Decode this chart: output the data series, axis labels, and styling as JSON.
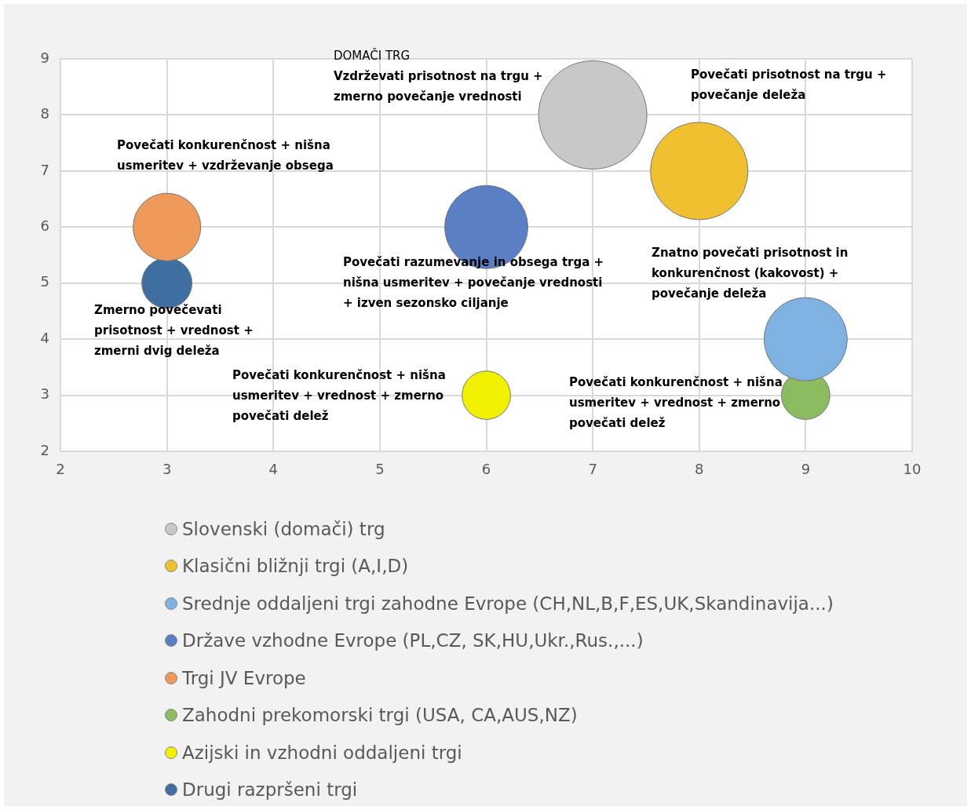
{
  "chart_data": {
    "type": "bubble",
    "xlim": [
      2,
      10
    ],
    "xticks": [
      2,
      3,
      4,
      5,
      6,
      7,
      8,
      9,
      10
    ],
    "ylim": [
      2,
      9
    ],
    "yticks": [
      2,
      3,
      4,
      5,
      6,
      7,
      8,
      9
    ],
    "grid": true,
    "legend": "bottom",
    "series": [
      {
        "name": "Slovenski (domači) trg",
        "color": "#c8c8c8",
        "x": [
          7
        ],
        "values": [
          8
        ],
        "sizes": [
          1
        ]
      },
      {
        "name": "Klasični bližnji trgi (A,I,D)",
        "color": "#f0c030",
        "x": [
          8
        ],
        "values": [
          7
        ],
        "sizes": [
          0.81
        ]
      },
      {
        "name": "Srednje oddaljeni trgi zahodne Evrope (CH,NL,B,F,ES,UK,Skandinavija...)",
        "color": "#7fb2e0",
        "x": [
          9
        ],
        "values": [
          4
        ],
        "sizes": [
          0.59
        ]
      },
      {
        "name": "Države vzhodne Evrope (PL,CZ, SK,HU,Ukr.,Rus.,...)",
        "color": "#5b7fc4",
        "x": [
          6
        ],
        "values": [
          6
        ],
        "sizes": [
          0.59
        ]
      },
      {
        "name": "Trgi JV Evrope",
        "color": "#ee9a5a",
        "x": [
          3
        ],
        "values": [
          6
        ],
        "sizes": [
          0.39
        ]
      },
      {
        "name": "Zahodni prekomorski trgi (USA, CA,AUS,NZ)",
        "color": "#8cbc60",
        "x": [
          9
        ],
        "values": [
          3
        ],
        "sizes": [
          0.2
        ]
      },
      {
        "name": "Azijski in vzhodni oddaljeni trgi",
        "color": "#f0f000",
        "x": [
          6
        ],
        "values": [
          3
        ],
        "sizes": [
          0.2
        ]
      },
      {
        "name": "Drugi razpršeni trgi",
        "color": "#3e6fa0",
        "x": [
          3
        ],
        "values": [
          5
        ],
        "sizes": [
          0.215
        ]
      }
    ],
    "annotations": [
      "DOMAČI TRG",
      "Vzdrževati prisotnost na trgu +\nzmerno povečanje vrednosti",
      "Povečati prisotnost na trgu +\npovečanje deleža",
      "Povečati konkurenčnost + nišna\nusmeritev + vzdrževanje obsega",
      "Povečati razumevanje in obsega trga +\nnišna usmeritev + povečanje vrednosti\n+ izven sezonsko ciljanje",
      "Znatno povečati prisotnost in\nkonkurenčnost (kakovost) +\npovečanje deleža",
      "Zmerno povečevati\nprisotnost + vrednost +\nzmerni dvig deleža",
      "Povečati konkurenčnost + nišna\nusmeritev + vrednost + zmerno\npovečati delež",
      "Povečati konkurenčnost + nišna\nusmeritev + vrednost + zmerno\npovečati delež"
    ]
  }
}
